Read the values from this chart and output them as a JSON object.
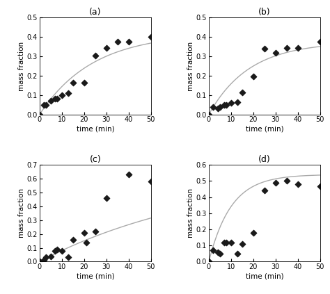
{
  "subplots": [
    {
      "label": "(a)",
      "ylim": [
        0,
        0.5
      ],
      "yticks": [
        0.0,
        0.1,
        0.2,
        0.3,
        0.4,
        0.5
      ],
      "scatter_x": [
        0,
        2,
        3,
        5,
        7,
        8,
        10,
        13,
        15,
        20,
        25,
        30,
        35,
        40,
        50
      ],
      "scatter_y": [
        0.0,
        0.05,
        0.05,
        0.07,
        0.08,
        0.08,
        0.1,
        0.11,
        0.165,
        0.165,
        0.305,
        0.345,
        0.375,
        0.375,
        0.4
      ],
      "curve_params": {
        "A": 0.42,
        "k": 0.042,
        "type": "exp"
      }
    },
    {
      "label": "(b)",
      "ylim": [
        0,
        0.5
      ],
      "yticks": [
        0.0,
        0.1,
        0.2,
        0.3,
        0.4,
        0.5
      ],
      "scatter_x": [
        0,
        2,
        4,
        5,
        7,
        8,
        10,
        13,
        15,
        20,
        25,
        30,
        35,
        40,
        50
      ],
      "scatter_y": [
        0.0,
        0.04,
        0.03,
        0.04,
        0.05,
        0.05,
        0.06,
        0.065,
        0.115,
        0.195,
        0.34,
        0.32,
        0.345,
        0.345,
        0.375
      ],
      "curve_params": {
        "A": 0.375,
        "k": 0.055,
        "type": "exp"
      }
    },
    {
      "label": "(c)",
      "ylim": [
        0,
        0.7
      ],
      "yticks": [
        0.0,
        0.1,
        0.2,
        0.3,
        0.4,
        0.5,
        0.6,
        0.7
      ],
      "scatter_x": [
        0,
        2,
        3,
        5,
        7,
        8,
        10,
        13,
        15,
        20,
        21,
        25,
        30,
        40,
        50
      ],
      "scatter_y": [
        0.0,
        0.01,
        0.03,
        0.04,
        0.08,
        0.09,
        0.08,
        0.03,
        0.16,
        0.21,
        0.14,
        0.22,
        0.46,
        0.63,
        0.58
      ],
      "curve_params": {
        "A": 0.66,
        "k": 0.013,
        "type": "linear"
      }
    },
    {
      "label": "(d)",
      "ylim": [
        0,
        0.6
      ],
      "yticks": [
        0.0,
        0.1,
        0.2,
        0.3,
        0.4,
        0.5,
        0.6
      ],
      "scatter_x": [
        0,
        2,
        4,
        5,
        7,
        8,
        10,
        13,
        15,
        20,
        25,
        30,
        35,
        40,
        50
      ],
      "scatter_y": [
        0.0,
        0.07,
        0.06,
        0.05,
        0.12,
        0.12,
        0.12,
        0.05,
        0.11,
        0.18,
        0.44,
        0.49,
        0.5,
        0.48,
        0.465
      ],
      "curve_params": {
        "A": 0.54,
        "k": 0.1,
        "type": "exp"
      }
    }
  ],
  "xlabel": "time (min)",
  "ylabel": "mass fraction",
  "xlim": [
    0,
    50
  ],
  "xticks": [
    0,
    10,
    20,
    30,
    40,
    50
  ],
  "scatter_color": "#1a1a1a",
  "scatter_marker": "D",
  "scatter_size": 18,
  "line_color": "#aaaaaa",
  "line_width": 1.0,
  "background_color": "#ffffff",
  "label_fontsize": 7.5,
  "tick_fontsize": 7,
  "title_fontsize": 9
}
